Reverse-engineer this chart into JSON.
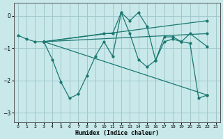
{
  "bg_color": "#c8e8ea",
  "grid_color": "#a0c8cc",
  "line_color": "#1a7870",
  "xlabel": "Humidex (Indice chaleur)",
  "xlim": [
    -0.5,
    23.5
  ],
  "ylim": [
    -3.3,
    0.4
  ],
  "yticks": [
    0,
    -1,
    -2,
    -3
  ],
  "xticks": [
    0,
    1,
    2,
    3,
    4,
    5,
    6,
    7,
    8,
    9,
    10,
    11,
    12,
    13,
    14,
    15,
    16,
    17,
    18,
    19,
    20,
    21,
    22,
    23
  ],
  "series": [
    {
      "x": [
        0,
        1,
        2,
        3,
        4,
        5,
        6,
        7,
        8,
        9,
        10,
        11,
        12,
        13,
        14,
        15,
        16,
        17,
        18,
        19,
        20,
        21,
        22
      ],
      "y": [
        -0.6,
        -0.72,
        -0.8,
        -0.8,
        -1.35,
        -2.05,
        -2.55,
        -2.42,
        -1.85,
        -1.25,
        -0.8,
        -1.25,
        0.1,
        -0.55,
        -1.35,
        -1.58,
        -1.38,
        -0.8,
        -0.72,
        -0.8,
        -0.85,
        -2.55,
        -2.45
      ]
    },
    {
      "x": [
        3,
        10,
        11,
        12,
        13,
        14,
        15,
        16,
        17,
        18,
        19,
        20,
        22
      ],
      "y": [
        -0.8,
        -0.55,
        -0.55,
        0.1,
        -0.15,
        0.1,
        -0.32,
        -1.38,
        -0.65,
        -0.65,
        -0.8,
        -0.55,
        -0.95
      ]
    },
    {
      "comment": "straight line from (3,-0.8) to (22,-0.15)",
      "x": [
        3,
        22
      ],
      "y": [
        -0.8,
        -0.15
      ]
    },
    {
      "x": [
        3,
        22
      ],
      "y": [
        -0.8,
        -0.55
      ]
    },
    {
      "x": [
        3,
        22
      ],
      "y": [
        -0.8,
        -2.45
      ]
    }
  ]
}
